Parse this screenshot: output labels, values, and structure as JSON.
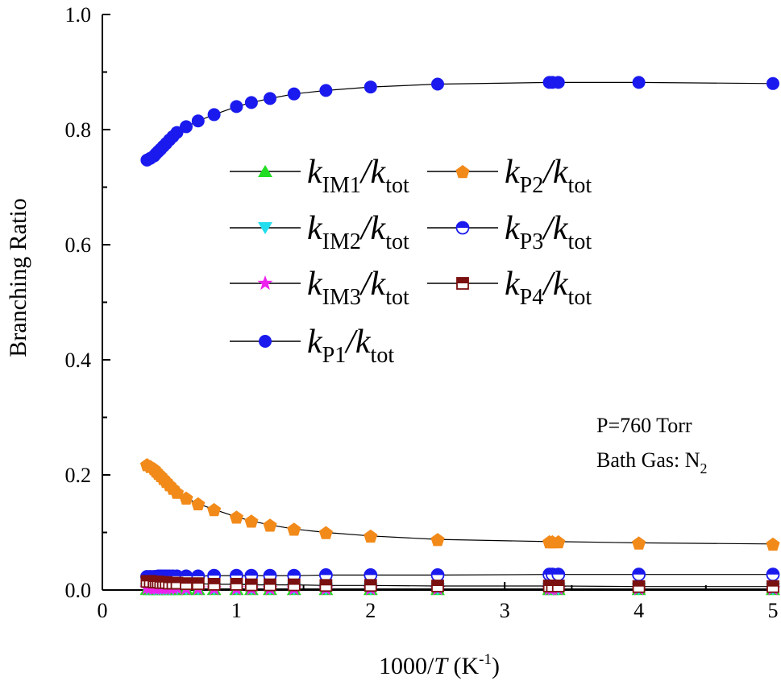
{
  "chart_data": {
    "type": "scatter",
    "title": "",
    "xlabel_prefix": "1000/",
    "xlabel_var": "T",
    "xlabel_unit_open": " (K",
    "xlabel_unit_sup": "-1",
    "xlabel_unit_close": ")",
    "ylabel": "Branching Ratio",
    "xlim": [
      0,
      5
    ],
    "ylim": [
      0,
      1.0
    ],
    "x_ticks": [
      0,
      1,
      2,
      3,
      4,
      5
    ],
    "x_tick_labels": [
      "0",
      "1",
      "2",
      "3",
      "4",
      "5"
    ],
    "y_ticks": [
      0.0,
      0.2,
      0.4,
      0.6,
      0.8,
      1.0
    ],
    "y_tick_labels": [
      "0.0",
      "0.2",
      "0.4",
      "0.6",
      "0.8",
      "1.0"
    ],
    "x": [
      0.333,
      0.357,
      0.385,
      0.4,
      0.417,
      0.435,
      0.455,
      0.476,
      0.5,
      0.526,
      0.556,
      0.625,
      0.714,
      0.833,
      1.0,
      1.111,
      1.25,
      1.429,
      1.667,
      2.0,
      2.5,
      3.333,
      3.356,
      3.4,
      4.0,
      5.0
    ],
    "series": [
      {
        "name": "kIM1",
        "main": "k",
        "sub1": "IM1",
        "mid": "/k",
        "sub2": "tot",
        "marker": "triangle-up",
        "color": "#22dd22",
        "values": [
          0.001,
          0.001,
          0.001,
          0.001,
          0.001,
          0.001,
          0.001,
          0.001,
          0.001,
          0.001,
          0.001,
          0.001,
          0.001,
          0.001,
          0.001,
          0.001,
          0.001,
          0.001,
          0.001,
          0.001,
          0.001,
          0.001,
          0.001,
          0.001,
          0.001,
          0.001
        ]
      },
      {
        "name": "kIM2",
        "main": "k",
        "sub1": "IM2",
        "mid": "/k",
        "sub2": "tot",
        "marker": "triangle-down",
        "color": "#22ddee",
        "values": [
          0.002,
          0.002,
          0.002,
          0.002,
          0.002,
          0.002,
          0.002,
          0.002,
          0.002,
          0.002,
          0.002,
          0.002,
          0.002,
          0.002,
          0.002,
          0.002,
          0.002,
          0.002,
          0.002,
          0.002,
          0.002,
          0.002,
          0.002,
          0.002,
          0.002,
          0.002
        ]
      },
      {
        "name": "kIM3",
        "main": "k",
        "sub1": "IM3",
        "mid": "/k",
        "sub2": "tot",
        "marker": "star",
        "color": "#ee22ee",
        "values": [
          0.003,
          0.003,
          0.003,
          0.003,
          0.003,
          0.003,
          0.003,
          0.003,
          0.003,
          0.003,
          0.003,
          0.002,
          0.002,
          0.002,
          0.002,
          0.002,
          0.002,
          0.002,
          0.002,
          0.002,
          0.002,
          0.002,
          0.002,
          0.002,
          0.002,
          0.002
        ]
      },
      {
        "name": "kP1",
        "main": "k",
        "sub1": "P1",
        "mid": "/k",
        "sub2": "tot",
        "marker": "circle",
        "color": "#1a1aee",
        "values": [
          0.747,
          0.75,
          0.754,
          0.758,
          0.762,
          0.766,
          0.771,
          0.776,
          0.782,
          0.788,
          0.795,
          0.805,
          0.815,
          0.826,
          0.84,
          0.847,
          0.854,
          0.862,
          0.868,
          0.874,
          0.879,
          0.882,
          0.882,
          0.882,
          0.882,
          0.88
        ]
      },
      {
        "name": "kP2",
        "main": "k",
        "sub1": "P2",
        "mid": "/k",
        "sub2": "tot",
        "marker": "pentagon",
        "color": "#f28a1a",
        "values": [
          0.218,
          0.215,
          0.211,
          0.207,
          0.203,
          0.199,
          0.194,
          0.189,
          0.183,
          0.177,
          0.17,
          0.16,
          0.15,
          0.14,
          0.127,
          0.12,
          0.113,
          0.106,
          0.1,
          0.094,
          0.088,
          0.084,
          0.084,
          0.084,
          0.082,
          0.08
        ]
      },
      {
        "name": "kP3",
        "main": "k",
        "sub1": "P3",
        "mid": "/k",
        "sub2": "tot",
        "marker": "circle-half",
        "color": "#1a1aee",
        "values": [
          0.023,
          0.023,
          0.023,
          0.023,
          0.024,
          0.024,
          0.024,
          0.024,
          0.024,
          0.024,
          0.024,
          0.024,
          0.024,
          0.025,
          0.025,
          0.025,
          0.025,
          0.025,
          0.026,
          0.026,
          0.026,
          0.027,
          0.027,
          0.027,
          0.027,
          0.027
        ]
      },
      {
        "name": "kP4",
        "main": "k",
        "sub1": "P4",
        "mid": "/k",
        "sub2": "tot",
        "marker": "square-half",
        "color": "#7a1010",
        "values": [
          0.015,
          0.015,
          0.014,
          0.014,
          0.014,
          0.013,
          0.013,
          0.013,
          0.012,
          0.012,
          0.012,
          0.011,
          0.011,
          0.01,
          0.01,
          0.009,
          0.009,
          0.009,
          0.008,
          0.008,
          0.007,
          0.007,
          0.007,
          0.007,
          0.006,
          0.006
        ]
      }
    ],
    "legend_order": [
      0,
      4,
      1,
      5,
      2,
      6,
      3
    ],
    "legend_placement": "center",
    "annotation_line1": "P=760 Torr",
    "annotation_line2_prefix": "Bath Gas: N",
    "annotation_line2_sub": "2"
  }
}
